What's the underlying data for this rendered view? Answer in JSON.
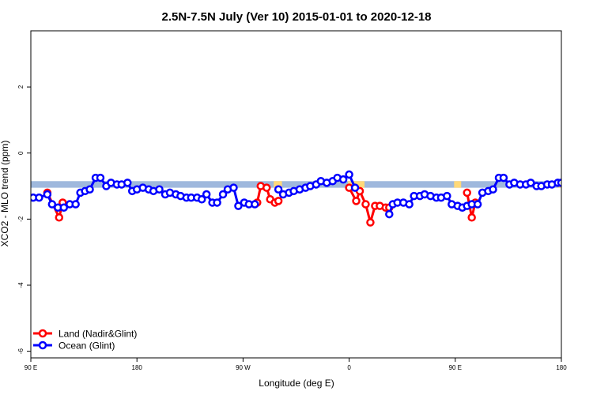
{
  "chart_data": {
    "type": "line",
    "title": "2.5N-7.5N July (Ver 10)   2015-01-01 to 2020-12-18",
    "xlabel": "Longitude (deg E)",
    "ylabel": "XCO2 - MLO trend (ppm)",
    "xlim": [
      90,
      540
    ],
    "ylim": [
      -6.2,
      3.7
    ],
    "x_ticks": [
      {
        "value": 90,
        "label": "90 E"
      },
      {
        "value": 180,
        "label": "180"
      },
      {
        "value": 270,
        "label": "90 W"
      },
      {
        "value": 360,
        "label": "0"
      },
      {
        "value": 450,
        "label": "90 E"
      },
      {
        "value": 540,
        "label": "180"
      }
    ],
    "y_ticks": [
      {
        "value": 2,
        "label": "2"
      },
      {
        "value": 0,
        "label": "0"
      },
      {
        "value": -2,
        "label": "-2"
      },
      {
        "value": -4,
        "label": "-4"
      },
      {
        "value": -6,
        "label": "-6"
      }
    ],
    "grid": false,
    "legend_position": "bottom-left",
    "band": {
      "y_range": [
        -1.05,
        -0.85
      ],
      "ocean_color": "#9fb8dd",
      "land_color": "#ffd97a",
      "land_x_ranges": [
        [
          296,
          303
        ],
        [
          359,
          373
        ],
        [
          449,
          455
        ],
        [
          537,
          540
        ]
      ]
    },
    "series": [
      {
        "name": "Land (Nadir&Glint)",
        "color": "#ff0000",
        "segments": [
          {
            "x": [
              104,
              114,
              117
            ],
            "y": [
              -1.2,
              -1.95,
              -1.5
            ]
          },
          {
            "x": [
              282,
              285,
              290,
              293,
              297,
              300
            ],
            "y": [
              -1.5,
              -1.0,
              -1.05,
              -1.4,
              -1.5,
              -1.45
            ]
          },
          {
            "x": [
              360,
              366,
              369,
              374,
              378,
              382,
              386,
              391,
              394
            ],
            "y": [
              -1.05,
              -1.45,
              -1.15,
              -1.55,
              -2.1,
              -1.6,
              -1.6,
              -1.65,
              -1.65
            ]
          },
          {
            "x": [
              460,
              464,
              467
            ],
            "y": [
              -1.2,
              -1.95,
              -1.5
            ]
          }
        ]
      },
      {
        "name": "Ocean (Glint)",
        "color": "#0000ff",
        "segments": [
          {
            "x": [
              92,
              97,
              104,
              108,
              113,
              118,
              123,
              128,
              132,
              136,
              140,
              145,
              149,
              154,
              158,
              163,
              167,
              172,
              176,
              180,
              185,
              190,
              194,
              199,
              204,
              208,
              213,
              217,
              222,
              226,
              231,
              235,
              239,
              244,
              248,
              253,
              257,
              262,
              266,
              271,
              275,
              280
            ],
            "y": [
              -1.35,
              -1.35,
              -1.25,
              -1.55,
              -1.65,
              -1.65,
              -1.55,
              -1.55,
              -1.2,
              -1.15,
              -1.1,
              -0.75,
              -0.75,
              -1.0,
              -0.9,
              -0.95,
              -0.95,
              -0.9,
              -1.15,
              -1.1,
              -1.05,
              -1.1,
              -1.15,
              -1.1,
              -1.25,
              -1.2,
              -1.25,
              -1.3,
              -1.35,
              -1.35,
              -1.35,
              -1.4,
              -1.25,
              -1.5,
              -1.5,
              -1.25,
              -1.1,
              -1.05,
              -1.6,
              -1.5,
              -1.55,
              -1.55
            ]
          },
          {
            "x": [
              300,
              304,
              309,
              313,
              318,
              323,
              327,
              332,
              336,
              341,
              346,
              350,
              355,
              360,
              365
            ],
            "y": [
              -1.1,
              -1.25,
              -1.2,
              -1.15,
              -1.1,
              -1.05,
              -1.0,
              -0.95,
              -0.85,
              -0.9,
              -0.85,
              -0.75,
              -0.8,
              -0.65,
              -1.05
            ]
          },
          {
            "x": [
              394,
              397,
              401,
              406,
              411,
              415,
              420,
              424,
              429,
              434,
              438,
              443,
              447,
              452,
              456,
              460,
              464,
              469,
              473,
              478,
              482,
              487,
              491,
              496,
              500,
              505,
              510,
              514,
              519,
              523,
              528,
              532,
              537,
              540
            ],
            "y": [
              -1.85,
              -1.55,
              -1.5,
              -1.5,
              -1.55,
              -1.3,
              -1.3,
              -1.25,
              -1.3,
              -1.35,
              -1.35,
              -1.3,
              -1.55,
              -1.6,
              -1.65,
              -1.6,
              -1.55,
              -1.55,
              -1.2,
              -1.15,
              -1.1,
              -0.75,
              -0.75,
              -0.95,
              -0.9,
              -0.95,
              -0.95,
              -0.9,
              -1.0,
              -1.0,
              -0.95,
              -0.95,
              -0.9,
              -0.9
            ]
          }
        ]
      }
    ]
  }
}
